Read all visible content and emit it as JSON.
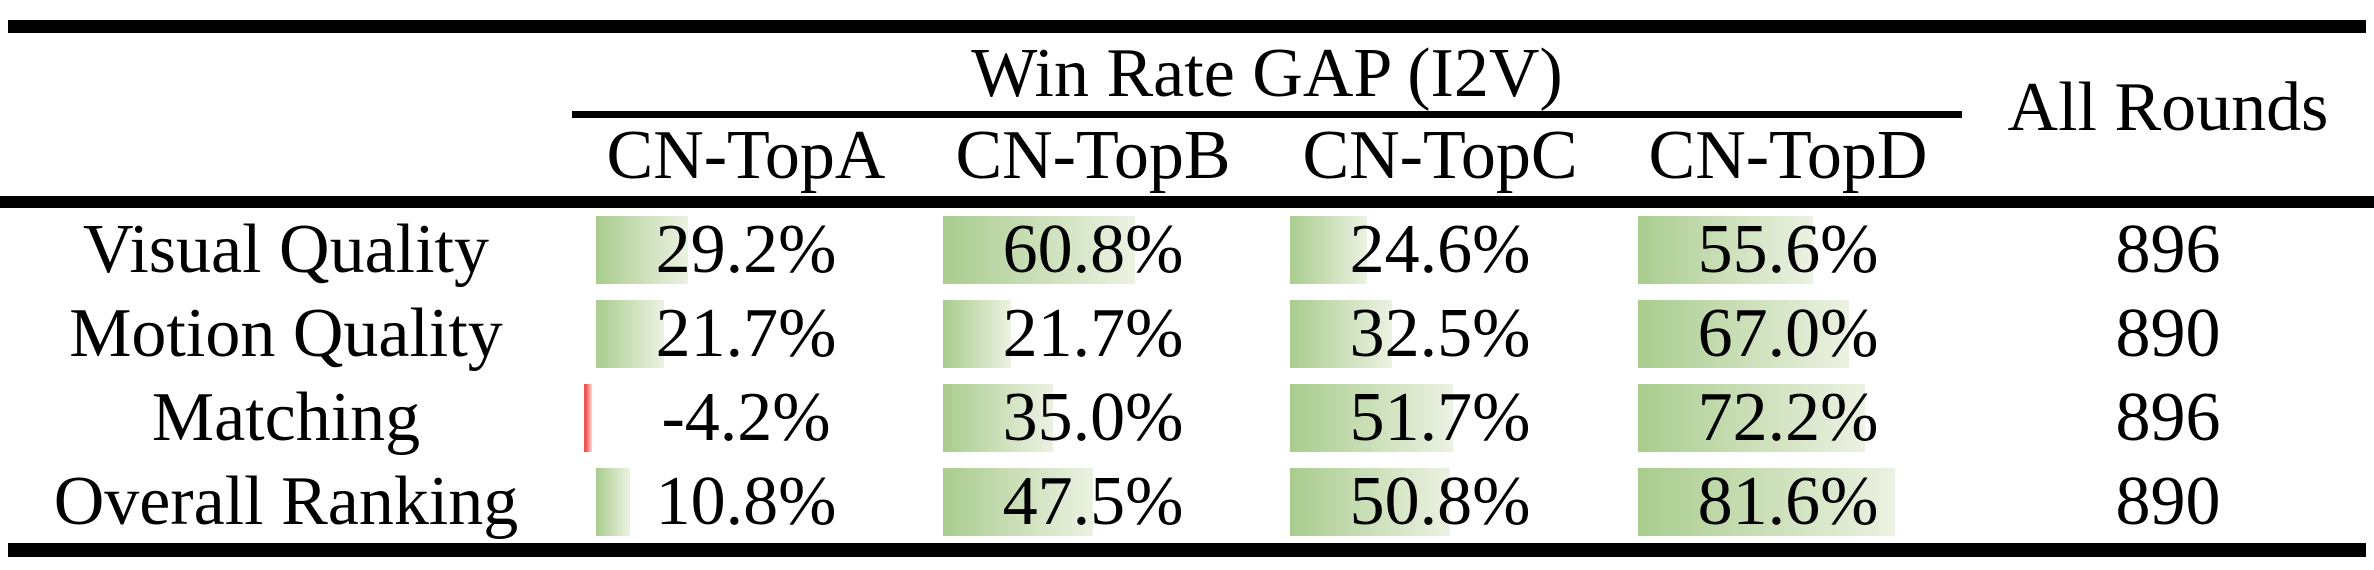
{
  "table": {
    "group_title": "Win Rate GAP (I2V)",
    "columns": [
      "CN-TopA",
      "CN-TopB",
      "CN-TopC",
      "CN-TopD"
    ],
    "all_rounds_label": "All Rounds",
    "rows": [
      {
        "label": "Visual Quality",
        "cells": [
          {
            "value": 29.2,
            "display": "29.2%"
          },
          {
            "value": 60.8,
            "display": "60.8%"
          },
          {
            "value": 24.6,
            "display": "24.6%"
          },
          {
            "value": 55.6,
            "display": "55.6%"
          }
        ],
        "all_rounds": "896"
      },
      {
        "label": "Motion Quality",
        "cells": [
          {
            "value": 21.7,
            "display": "21.7%"
          },
          {
            "value": 21.7,
            "display": "21.7%"
          },
          {
            "value": 32.5,
            "display": "32.5%"
          },
          {
            "value": 67.0,
            "display": "67.0%"
          }
        ],
        "all_rounds": "890"
      },
      {
        "label": "Matching",
        "cells": [
          {
            "value": -4.2,
            "display": "-4.2%"
          },
          {
            "value": 35.0,
            "display": "35.0%"
          },
          {
            "value": 51.7,
            "display": "51.7%"
          },
          {
            "value": 72.2,
            "display": "72.2%"
          }
        ],
        "all_rounds": "896"
      },
      {
        "label": "Overall Ranking",
        "cells": [
          {
            "value": 10.8,
            "display": "10.8%"
          },
          {
            "value": 47.5,
            "display": "47.5%"
          },
          {
            "value": 50.8,
            "display": "50.8%"
          },
          {
            "value": 81.6,
            "display": "81.6%"
          }
        ],
        "all_rounds": "890"
      }
    ],
    "colors": {
      "bar_green_start": "#a9cc8e",
      "bar_green_end": "#ecf2e2",
      "bar_negative_dark": "#ef5350",
      "bar_negative_light": "#ffd6d2",
      "rule_color": "#000000",
      "text_color": "#000000"
    }
  },
  "chart_data": {
    "type": "table",
    "title": "Win Rate GAP (I2V)",
    "row_header_label": "",
    "categories": [
      "Visual Quality",
      "Motion Quality",
      "Matching",
      "Overall Ranking"
    ],
    "series": [
      {
        "name": "CN-TopA",
        "values": [
          29.2,
          21.7,
          -4.2,
          10.8
        ]
      },
      {
        "name": "CN-TopB",
        "values": [
          60.8,
          21.7,
          35.0,
          47.5
        ]
      },
      {
        "name": "CN-TopC",
        "values": [
          24.6,
          32.5,
          51.7,
          50.8
        ]
      },
      {
        "name": "CN-TopD",
        "values": [
          55.6,
          67.0,
          72.2,
          81.6
        ]
      }
    ],
    "extra_column": {
      "name": "All Rounds",
      "values": [
        896,
        890,
        896,
        890
      ]
    },
    "value_unit": "%",
    "bar_scale": "cell data bars, 0-100% of cell width, negative shown red",
    "layout": "booktabs table, group header spans four CN columns, All Rounds spans both header rows"
  }
}
